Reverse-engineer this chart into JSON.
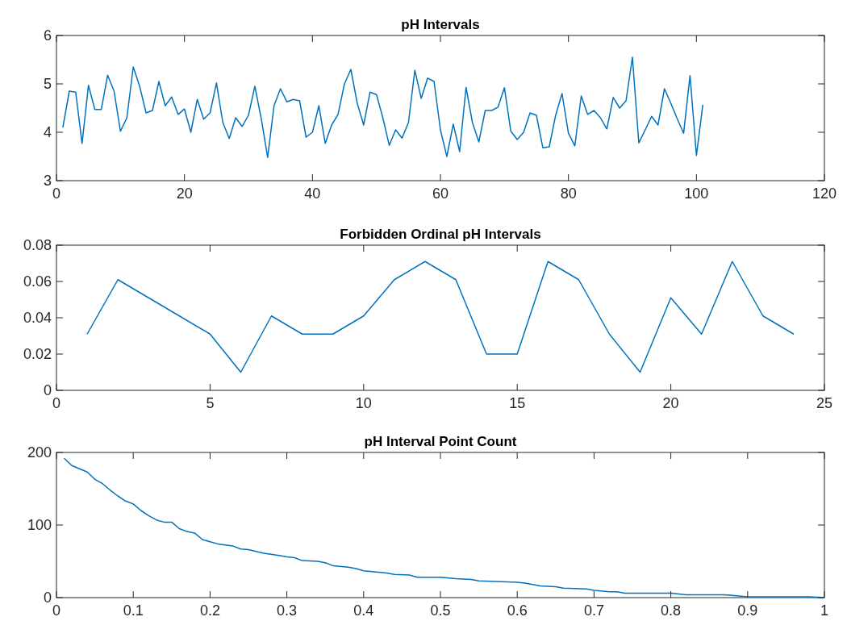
{
  "chart_data": [
    {
      "type": "line",
      "title": "pH Intervals",
      "x": [
        1,
        2,
        3,
        4,
        5,
        6,
        7,
        8,
        9,
        10,
        11,
        12,
        13,
        14,
        15,
        16,
        17,
        18,
        19,
        20,
        21,
        22,
        23,
        24,
        25,
        26,
        27,
        28,
        29,
        30,
        31,
        32,
        33,
        34,
        35,
        36,
        37,
        38,
        39,
        40,
        41,
        42,
        43,
        44,
        45,
        46,
        47,
        48,
        49,
        50,
        51,
        52,
        53,
        54,
        55,
        56,
        57,
        58,
        59,
        60,
        61,
        62,
        63,
        64,
        65,
        66,
        67,
        68,
        69,
        70,
        71,
        72,
        73,
        74,
        75,
        76,
        77,
        78,
        79,
        80,
        81,
        82,
        83,
        84,
        85,
        86,
        87,
        88,
        89,
        90,
        91,
        92,
        93,
        94,
        95,
        96,
        97,
        98,
        99,
        100,
        101
      ],
      "series": [
        {
          "color": "#0072bd",
          "values": [
            4.1,
            4.85,
            4.83,
            3.77,
            4.97,
            4.47,
            4.47,
            5.18,
            4.85,
            4.02,
            4.3,
            5.35,
            4.95,
            4.4,
            4.45,
            5.05,
            4.55,
            4.73,
            4.37,
            4.48,
            4.0,
            4.68,
            4.27,
            4.4,
            5.02,
            4.2,
            3.87,
            4.3,
            4.12,
            4.35,
            4.95,
            4.28,
            3.48,
            4.55,
            4.9,
            4.63,
            4.68,
            4.65,
            3.9,
            4.0,
            4.55,
            3.77,
            4.15,
            4.37,
            5.0,
            5.3,
            4.6,
            4.15,
            4.83,
            4.78,
            4.3,
            3.73,
            4.05,
            3.88,
            4.2,
            5.28,
            4.7,
            5.12,
            5.05,
            4.05,
            3.5,
            4.17,
            3.6,
            4.93,
            4.2,
            3.8,
            4.45,
            4.45,
            4.52,
            4.92,
            4.02,
            3.85,
            4.0,
            4.4,
            4.35,
            3.68,
            3.7,
            4.35,
            4.8,
            3.98,
            3.72,
            4.75,
            4.37,
            4.45,
            4.3,
            4.07,
            4.72,
            4.5,
            4.65,
            5.55,
            3.78,
            4.05,
            4.33,
            4.15,
            4.9,
            4.6,
            4.28,
            3.98,
            5.17,
            3.52,
            4.57
          ]
        }
      ],
      "xlim": [
        0,
        120
      ],
      "xticks": [
        0,
        20,
        40,
        60,
        80,
        100,
        120
      ],
      "ylim": [
        3,
        6
      ],
      "yticks": [
        3,
        4,
        5,
        6
      ],
      "grid": false
    },
    {
      "type": "line",
      "title": "Forbidden Ordinal pH Intervals",
      "x": [
        1,
        2,
        3,
        4,
        5,
        6,
        7,
        8,
        9,
        10,
        11,
        12,
        13,
        14,
        15,
        16,
        17,
        18,
        19,
        20,
        21,
        22,
        23,
        24
      ],
      "series": [
        {
          "color": "#0072bd",
          "values": [
            0.031,
            0.061,
            0.051,
            0.041,
            0.031,
            0.01,
            0.041,
            0.031,
            0.031,
            0.041,
            0.061,
            0.071,
            0.061,
            0.02,
            0.02,
            0.071,
            0.061,
            0.031,
            0.01,
            0.051,
            0.031,
            0.071,
            0.041,
            0.031
          ]
        }
      ],
      "xlim": [
        0,
        25
      ],
      "xticks": [
        0,
        5,
        10,
        15,
        20,
        25
      ],
      "ylim": [
        0,
        0.08
      ],
      "yticks": [
        0,
        {
          "value": 0.02,
          "label": "0.02"
        },
        {
          "value": 0.04,
          "label": "0.04"
        },
        {
          "value": 0.06,
          "label": "0.06"
        },
        {
          "value": 0.08,
          "label": "0.08"
        }
      ],
      "grid": false
    },
    {
      "type": "line",
      "title": "pH Interval Point Count",
      "x": [
        0.01,
        0.02,
        0.04,
        0.05,
        0.06,
        0.07,
        0.08,
        0.09,
        0.1,
        0.11,
        0.12,
        0.13,
        0.14,
        0.15,
        0.16,
        0.17,
        0.18,
        0.19,
        0.2,
        0.21,
        0.23,
        0.24,
        0.25,
        0.27,
        0.29,
        0.3,
        0.31,
        0.32,
        0.34,
        0.35,
        0.36,
        0.38,
        0.39,
        0.4,
        0.43,
        0.44,
        0.46,
        0.47,
        0.5,
        0.52,
        0.54,
        0.55,
        0.58,
        0.6,
        0.61,
        0.63,
        0.65,
        0.66,
        0.69,
        0.7,
        0.72,
        0.73,
        0.74,
        0.8,
        0.82,
        0.87,
        0.88,
        0.9,
        0.98,
        1
      ],
      "series": [
        {
          "color": "#0072bd",
          "values": [
            192,
            182,
            173,
            163,
            157,
            148,
            140,
            133,
            129,
            120,
            113,
            107,
            104,
            104,
            95,
            91,
            89,
            80,
            77,
            74,
            71,
            67,
            66,
            61,
            58,
            56,
            55,
            51,
            50,
            48,
            44,
            42,
            40,
            37,
            34,
            32,
            31,
            28,
            28,
            26,
            25,
            23,
            22,
            21,
            20,
            16,
            15,
            13,
            12,
            10,
            8,
            8,
            6,
            6,
            4,
            4,
            3,
            1,
            1,
            0
          ]
        }
      ],
      "xlim": [
        0,
        1
      ],
      "xticks": [
        0,
        0.1,
        0.2,
        0.3,
        0.4,
        0.5,
        0.6,
        0.7,
        0.8,
        0.9,
        1
      ],
      "ylim": [
        0,
        200
      ],
      "yticks": [
        0,
        100,
        200
      ],
      "grid": false
    }
  ]
}
